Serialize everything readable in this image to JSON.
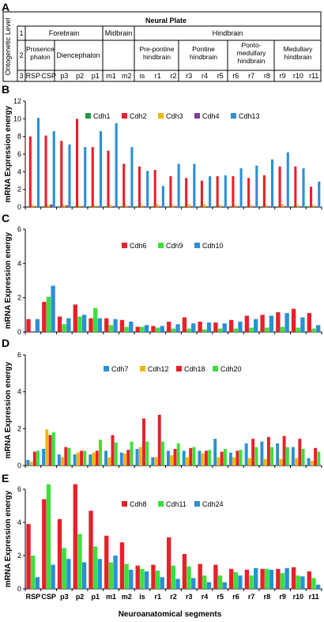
{
  "table": {
    "panel_label": "A",
    "title": "Neural Plate",
    "row_label": "Ontogenetic Level",
    "level_numbers": [
      "1",
      "2",
      "3"
    ],
    "level1": [
      "Forebrain",
      "Midbrain",
      "Hindbrain"
    ],
    "level2": [
      "Prosence-phalon",
      "Diencephalon",
      "Pre-pontine hindbrain",
      "Pontine hindbrain",
      "Ponto-medullary hindbrain",
      "Medullary hindbrain"
    ],
    "level3": [
      "RSP",
      "CSP",
      "p3",
      "p2",
      "p1",
      "m1",
      "m2",
      "is",
      "r1",
      "r2",
      "r3",
      "r4",
      "r5",
      "r6",
      "r7",
      "r8",
      "r9",
      "r10",
      "r11"
    ]
  },
  "shared": {
    "ylabel": "mRNA Expression energy",
    "xlabel": "Neuroanatomical segments",
    "colors": {
      "Cdh1": "#1f9e3a",
      "Cdh2": "#e8202a",
      "Cdh3": "#f5b400",
      "Cdh4": "#7b3fa0",
      "Cdh13": "#2b8fd6",
      "Cdh6": "#e8202a",
      "Cdh9": "#3be03b",
      "Cdh10": "#2b8fd6",
      "Cdh7": "#2b8fd6",
      "Cdh12": "#f5b400",
      "Cdh18": "#e8202a",
      "Cdh20": "#3be03b",
      "Cdh8": "#e8202a",
      "Cdh11": "#3be03b",
      "Cdh24": "#2b8fd6"
    }
  },
  "chart_data": [
    {
      "panel": "B",
      "type": "bar",
      "ylim": [
        0,
        12
      ],
      "yticks": [
        0,
        2,
        4,
        6,
        8,
        10,
        12
      ],
      "legend": "top-center",
      "categories": [
        "RSP",
        "CSP",
        "p3",
        "p2",
        "p1",
        "m1",
        "m2",
        "is",
        "r1",
        "r2",
        "r3",
        "r4",
        "r5",
        "r6",
        "r7",
        "r8",
        "r9",
        "r10",
        "r11"
      ],
      "series": [
        {
          "name": "Cdh1",
          "values": [
            0.1,
            0.1,
            0.1,
            0.1,
            0.1,
            0.1,
            0.1,
            0.1,
            0.1,
            0.1,
            0.1,
            0.1,
            0.1,
            0.1,
            0.1,
            0.1,
            0.1,
            0.1,
            0.1
          ]
        },
        {
          "name": "Cdh2",
          "values": [
            8.0,
            8.1,
            7.5,
            10.0,
            6.8,
            6.4,
            4.9,
            4.6,
            4.2,
            3.5,
            3.3,
            3.0,
            3.5,
            3.5,
            3.3,
            3.6,
            4.6,
            4.6,
            2.3
          ]
        },
        {
          "name": "Cdh3",
          "values": [
            0.2,
            0.2,
            0.2,
            0.2,
            0.2,
            0.2,
            0.2,
            0.2,
            0.3,
            0.2,
            0.3,
            0.3,
            0.2,
            0.2,
            0.2,
            0.2,
            0.3,
            0.2,
            0.2
          ]
        },
        {
          "name": "Cdh4",
          "values": [
            0.1,
            0.3,
            0.2,
            0.1,
            0.1,
            0.1,
            0.1,
            0.1,
            0.1,
            0.1,
            0.1,
            0.1,
            0.1,
            0.1,
            0.1,
            0.1,
            0.1,
            0.1,
            0.1
          ]
        },
        {
          "name": "Cdh13",
          "values": [
            10.1,
            8.6,
            7.1,
            6.8,
            8.6,
            9.5,
            6.8,
            4.1,
            2.4,
            4.9,
            4.9,
            3.5,
            3.6,
            4.4,
            4.7,
            5.4,
            6.2,
            4.4,
            2.9
          ]
        }
      ]
    },
    {
      "panel": "C",
      "type": "bar",
      "ylim": [
        0,
        6
      ],
      "yticks": [
        0,
        2,
        4,
        6
      ],
      "legend": "top-center",
      "categories": [
        "RSP",
        "CSP",
        "p3",
        "p2",
        "p1",
        "m1",
        "m2",
        "is",
        "r1",
        "r2",
        "r3",
        "r4",
        "r5",
        "r6",
        "r7",
        "r8",
        "r9",
        "r10",
        "r11"
      ],
      "series": [
        {
          "name": "Cdh6",
          "values": [
            0.75,
            1.75,
            0.9,
            1.6,
            0.8,
            0.8,
            0.7,
            0.3,
            0.35,
            0.6,
            0.85,
            0.6,
            0.55,
            0.7,
            0.95,
            1.0,
            1.15,
            1.35,
            1.1
          ]
        },
        {
          "name": "Cdh9",
          "values": [
            0.0,
            2.05,
            0.45,
            0.9,
            1.4,
            0.4,
            0.3,
            0.3,
            0.25,
            0.2,
            0.2,
            0.15,
            0.2,
            0.2,
            0.25,
            0.25,
            0.3,
            0.25,
            0.2
          ]
        },
        {
          "name": "Cdh10",
          "values": [
            0.75,
            2.7,
            0.8,
            1.0,
            0.8,
            0.75,
            0.6,
            0.4,
            0.35,
            0.45,
            0.5,
            0.55,
            0.5,
            0.6,
            0.75,
            0.95,
            1.1,
            0.85,
            0.4
          ]
        }
      ]
    },
    {
      "panel": "D",
      "type": "bar",
      "ylim": [
        0,
        6
      ],
      "yticks": [
        0,
        2,
        4,
        6
      ],
      "legend": "top-center",
      "categories": [
        "RSP",
        "CSP",
        "p3",
        "p2",
        "p1",
        "m1",
        "m2",
        "is",
        "r1",
        "r2",
        "r3",
        "r4",
        "r5",
        "r6",
        "r7",
        "r8",
        "r9",
        "r10",
        "r11"
      ],
      "series": [
        {
          "name": "Cdh7",
          "values": [
            0.3,
            0.9,
            0.6,
            0.6,
            0.6,
            0.8,
            0.7,
            0.9,
            0.45,
            0.8,
            0.8,
            0.8,
            1.45,
            0.7,
            1.2,
            1.3,
            1.2,
            1.0,
            0.4
          ]
        },
        {
          "name": "Cdh12",
          "values": [
            0.2,
            1.95,
            0.45,
            0.7,
            0.7,
            0.45,
            0.65,
            1.0,
            0.45,
            0.55,
            0.45,
            0.65,
            0.45,
            0.45,
            0.4,
            0.35,
            0.35,
            0.4,
            0.25
          ]
        },
        {
          "name": "Cdh18",
          "values": [
            0.75,
            1.65,
            1.0,
            0.8,
            0.8,
            1.65,
            0.85,
            2.55,
            2.75,
            0.9,
            0.95,
            0.8,
            0.75,
            0.8,
            1.45,
            1.55,
            1.6,
            1.45,
            0.95
          ]
        },
        {
          "name": "Cdh20",
          "values": [
            0.8,
            1.8,
            0.95,
            0.8,
            1.4,
            1.25,
            1.3,
            1.3,
            1.3,
            1.2,
            1.0,
            0.85,
            0.9,
            0.85,
            1.0,
            1.0,
            1.0,
            0.9,
            0.75
          ]
        }
      ]
    },
    {
      "panel": "E",
      "type": "bar",
      "ylim": [
        0,
        6
      ],
      "yticks": [
        0,
        2,
        4,
        6
      ],
      "legend": "top-center",
      "categories": [
        "RSP",
        "CSP",
        "p3",
        "p2",
        "p1",
        "m1",
        "m2",
        "is",
        "r1",
        "r2",
        "r3",
        "r4",
        "r5",
        "r6",
        "r7",
        "r8",
        "r9",
        "r10",
        "r11"
      ],
      "series": [
        {
          "name": "Cdh8",
          "values": [
            3.9,
            5.4,
            4.2,
            6.3,
            4.7,
            3.2,
            2.8,
            1.4,
            1.45,
            3.1,
            2.1,
            1.5,
            1.45,
            1.2,
            1.15,
            1.2,
            1.2,
            1.3,
            1.05
          ]
        },
        {
          "name": "Cdh11",
          "values": [
            2.0,
            6.3,
            2.45,
            3.3,
            2.55,
            1.6,
            1.5,
            1.2,
            1.1,
            1.4,
            1.35,
            0.8,
            0.8,
            1.0,
            0.8,
            1.2,
            0.95,
            0.8,
            0.65
          ]
        },
        {
          "name": "Cdh24",
          "values": [
            0.7,
            1.45,
            1.8,
            1.6,
            1.8,
            2.0,
            1.15,
            1.05,
            0.7,
            0.6,
            0.65,
            0.4,
            0.4,
            0.8,
            1.25,
            1.15,
            1.25,
            0.75,
            0.25
          ]
        }
      ]
    }
  ]
}
